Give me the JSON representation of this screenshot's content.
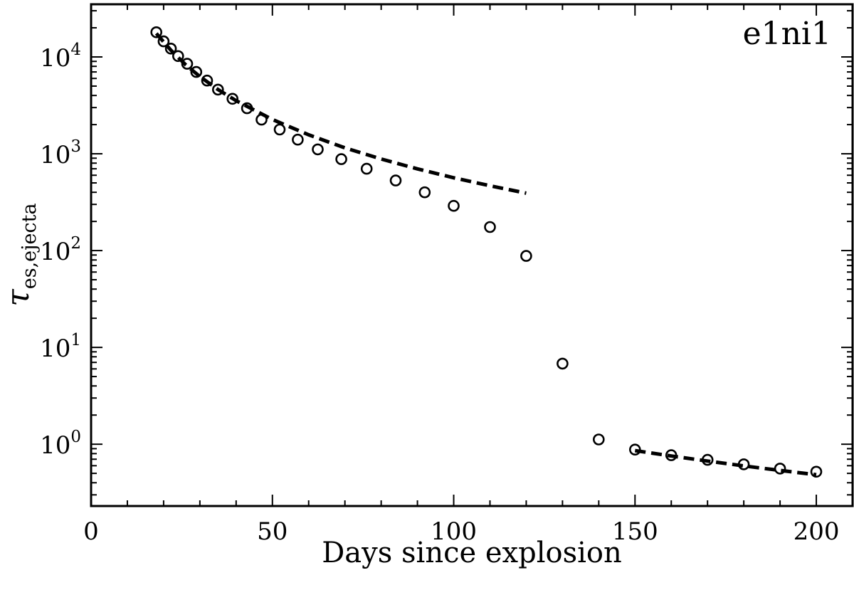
{
  "chart_data": {
    "type": "scatter",
    "panel_label": "e1ni1",
    "xlabel": "Days since explosion",
    "ylabel": {
      "symbol": "τ",
      "subscript": "es,ejecta"
    },
    "xlim": [
      0,
      210
    ],
    "ylim": [
      0.23,
      35000
    ],
    "yscale": "log",
    "grid": false,
    "x_ticks": [
      0,
      50,
      100,
      150,
      200
    ],
    "y_ticks": [
      {
        "value": 1,
        "base": "10",
        "exp": "0"
      },
      {
        "value": 10,
        "base": "10",
        "exp": "1"
      },
      {
        "value": 100,
        "base": "10",
        "exp": "2"
      },
      {
        "value": 1000,
        "base": "10",
        "exp": "3"
      },
      {
        "value": 10000,
        "base": "10",
        "exp": "4"
      }
    ],
    "series": [
      {
        "marker": "open-circle",
        "color": "#000000",
        "x": [
          18,
          20,
          22,
          24,
          26.5,
          29,
          32,
          35,
          39,
          43,
          47,
          52,
          57,
          62.5,
          69,
          76,
          84,
          92,
          100,
          110,
          120,
          130,
          140,
          150,
          160,
          170,
          180,
          190,
          200
        ],
        "y": [
          18000,
          14500,
          12200,
          10200,
          8500,
          7000,
          5700,
          4600,
          3700,
          2950,
          2250,
          1780,
          1400,
          1110,
          880,
          700,
          530,
          400,
          290,
          175,
          88,
          6.8,
          1.12,
          0.88,
          0.77,
          0.69,
          0.62,
          0.56,
          0.52
        ]
      },
      {
        "line": "dashed",
        "color": "#000000",
        "x": [
          18,
          22,
          26,
          30,
          35,
          40,
          50,
          60,
          70,
          80,
          90,
          100,
          110,
          120
        ],
        "y": [
          17500,
          11750,
          8350,
          6270,
          4610,
          3530,
          2260,
          1570,
          1150,
          883,
          698,
          565,
          467,
          392
        ]
      },
      {
        "line": "dashed",
        "color": "#000000",
        "x": [
          150,
          160,
          170,
          180,
          190,
          200
        ],
        "y": [
          0.86,
          0.756,
          0.67,
          0.597,
          0.536,
          0.484
        ]
      }
    ]
  }
}
